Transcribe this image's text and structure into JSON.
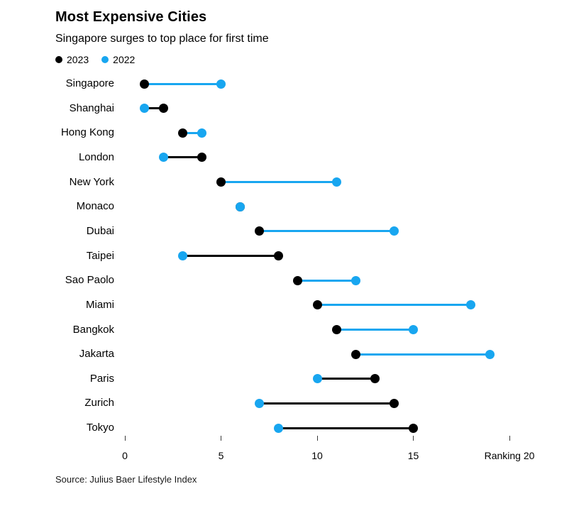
{
  "header": {
    "title": "Most Expensive Cities",
    "subtitle": "Singapore surges to top place for first time"
  },
  "source": "Source: Julius Baer Lifestyle Index",
  "colors": {
    "series_2023": "#000000",
    "series_2022": "#18A6F0",
    "background": "#ffffff",
    "text": "#000000"
  },
  "chart_data": {
    "type": "dumbbell",
    "title": "Most Expensive Cities",
    "subtitle": "Singapore surges to top place for first time",
    "categories": [
      "Singapore",
      "Shanghai",
      "Hong Kong",
      "London",
      "New York",
      "Monaco",
      "Dubai",
      "Taipei",
      "Sao Paolo",
      "Miami",
      "Bangkok",
      "Jakarta",
      "Paris",
      "Zurich",
      "Tokyo"
    ],
    "series": [
      {
        "name": "2023",
        "color": "#000000",
        "values": [
          1,
          2,
          3,
          4,
          5,
          6,
          7,
          8,
          9,
          10,
          11,
          12,
          13,
          14,
          15
        ]
      },
      {
        "name": "2022",
        "color": "#18A6F0",
        "values": [
          5,
          1,
          4,
          2,
          11,
          6,
          14,
          3,
          12,
          18,
          15,
          19,
          10,
          7,
          8
        ]
      }
    ],
    "xlabel": "Ranking",
    "xlim": [
      0,
      20
    ],
    "x_ticks": [
      0,
      5,
      10,
      15,
      20
    ],
    "x_tick_labels": [
      "0",
      "5",
      "10",
      "15",
      "Ranking 20"
    ],
    "legend_position": "top-left",
    "grid": false,
    "connector_color_rule": "color of rightmost dot",
    "draw_order": "2023 dot below, 2022 dot on top"
  }
}
